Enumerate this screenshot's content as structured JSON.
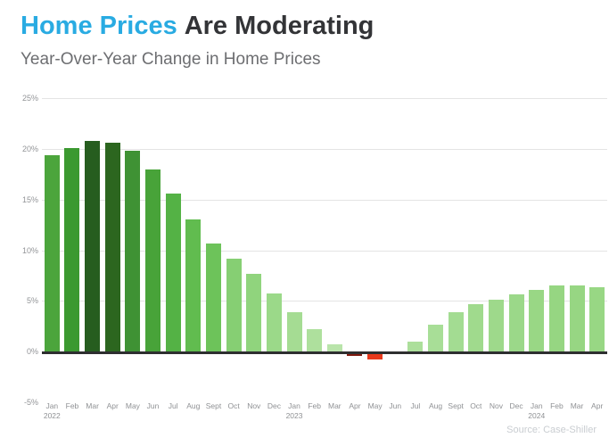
{
  "header": {
    "title_accent": "Home Prices",
    "title_rest": "Are Moderating",
    "subtitle": "Year-Over-Year Change in Home Prices"
  },
  "chart_data": {
    "type": "bar",
    "title": "Home Prices Are Moderating",
    "subtitle": "Year-Over-Year Change in Home Prices",
    "xlabel": "",
    "ylabel": "",
    "ylim": [
      -5,
      25
    ],
    "yticks": [
      25,
      20,
      15,
      10,
      5,
      0,
      -5
    ],
    "ytick_labels": [
      "25%",
      "20%",
      "15%",
      "10%",
      "5%",
      "0%",
      "-5%"
    ],
    "gridline_ticks": [
      25,
      20,
      15,
      10,
      5
    ],
    "grid": "horizontal light gridlines, thick dark zero baseline",
    "legend_position": "none",
    "categories": [
      {
        "month": "Jan",
        "year": "2022"
      },
      {
        "month": "Feb",
        "year": ""
      },
      {
        "month": "Mar",
        "year": ""
      },
      {
        "month": "Apr",
        "year": ""
      },
      {
        "month": "May",
        "year": ""
      },
      {
        "month": "Jun",
        "year": ""
      },
      {
        "month": "Jul",
        "year": ""
      },
      {
        "month": "Aug",
        "year": ""
      },
      {
        "month": "Sept",
        "year": ""
      },
      {
        "month": "Oct",
        "year": ""
      },
      {
        "month": "Nov",
        "year": ""
      },
      {
        "month": "Dec",
        "year": ""
      },
      {
        "month": "Jan",
        "year": "2023"
      },
      {
        "month": "Feb",
        "year": ""
      },
      {
        "month": "Mar",
        "year": ""
      },
      {
        "month": "Apr",
        "year": ""
      },
      {
        "month": "May",
        "year": ""
      },
      {
        "month": "Jun",
        "year": ""
      },
      {
        "month": "Jul",
        "year": ""
      },
      {
        "month": "Aug",
        "year": ""
      },
      {
        "month": "Sept",
        "year": ""
      },
      {
        "month": "Oct",
        "year": ""
      },
      {
        "month": "Nov",
        "year": ""
      },
      {
        "month": "Dec",
        "year": ""
      },
      {
        "month": "Jan",
        "year": "2024"
      },
      {
        "month": "Feb",
        "year": ""
      },
      {
        "month": "Mar",
        "year": ""
      },
      {
        "month": "Apr",
        "year": ""
      }
    ],
    "series": [
      {
        "name": "Year-over-year change in home prices (%)",
        "values": [
          19.4,
          20.1,
          20.8,
          20.6,
          19.8,
          18.0,
          15.6,
          13.0,
          10.7,
          9.2,
          7.7,
          5.7,
          3.9,
          2.2,
          0.7,
          -0.2,
          -0.5,
          0.0,
          1.0,
          2.6,
          3.9,
          4.7,
          5.1,
          5.6,
          6.1,
          6.5,
          6.5,
          6.3
        ]
      }
    ],
    "bar_colors": [
      "#4CA53C",
      "#3B9930",
      "#265D1F",
      "#2C661F",
      "#3F9234",
      "#48A339",
      "#54B245",
      "#61BC4F",
      "#6DC35A",
      "#86CF73",
      "#90D47D",
      "#9BD989",
      "#A5DC93",
      "#AEE09D",
      "#B9E4AA",
      "#7E1A10",
      "#E8391C",
      "#BFE7B0",
      "#ACDF9B",
      "#A8DE97",
      "#A3DC92",
      "#A0DA8D",
      "#9ED98B",
      "#9BD889",
      "#99D785",
      "#96D682",
      "#97D683",
      "#98D784"
    ],
    "colors": {
      "title_accent": "#29ABE2",
      "title_text": "#333437",
      "subtitle": "#6D6E71",
      "axis_label": "#929497",
      "gridline": "#E4E4E4",
      "zero_baseline": "#2E2F30",
      "negative_bar": "#E8391C",
      "source_text": "#C9CDD1"
    }
  },
  "footer": {
    "source": "Source: Case-Shiller"
  }
}
